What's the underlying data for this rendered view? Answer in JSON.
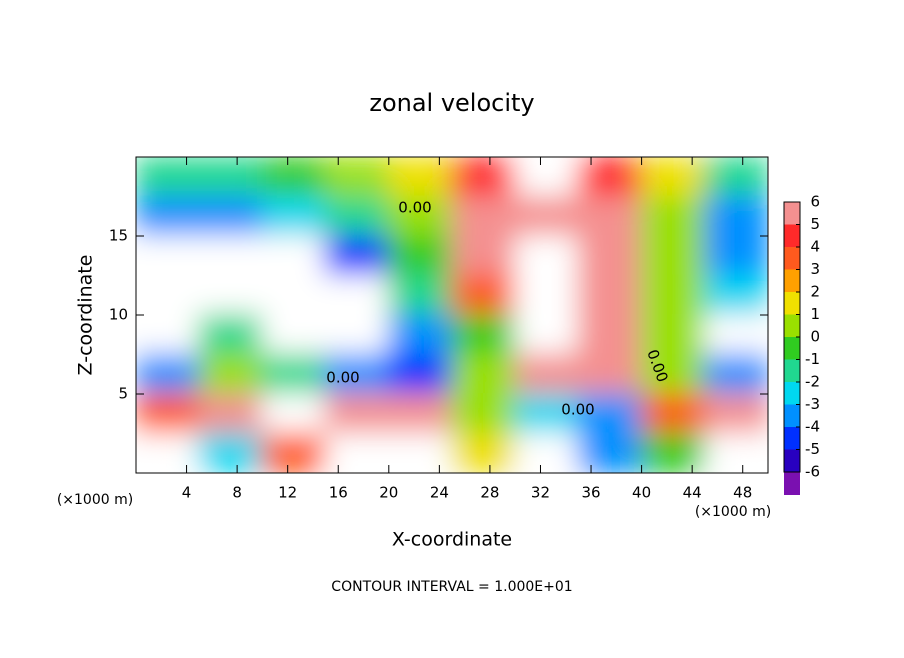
{
  "chart_data": {
    "type": "contour",
    "title": "zonal velocity",
    "xlabel": "X-coordinate",
    "ylabel": "Z-coordinate",
    "x_unit": "(×1000 m)",
    "y_unit": "(×1000 m)",
    "footnote": "CONTOUR INTERVAL = 1.000E+01",
    "xlim": [
      0,
      50
    ],
    "ylim": [
      0,
      20
    ],
    "xticks": [
      4,
      8,
      12,
      16,
      20,
      24,
      28,
      32,
      36,
      40,
      44,
      48
    ],
    "yticks": [
      5,
      10,
      15
    ],
    "z": [
      [
        -2,
        -2,
        -1,
        0,
        1,
        4,
        8,
        4,
        1,
        -2
      ],
      [
        -4,
        -4,
        -3,
        -2,
        0,
        5,
        5,
        5,
        0,
        -4
      ],
      [
        -8,
        -8,
        -8,
        -5,
        -1,
        5,
        8,
        5,
        0,
        -4
      ],
      [
        -8,
        -8,
        -8,
        -8,
        -2,
        3,
        8,
        6,
        0,
        -3
      ],
      [
        -8,
        -2,
        -8,
        -8,
        -4,
        -1,
        8,
        6,
        0,
        -8
      ],
      [
        -4,
        0,
        -2,
        -4,
        -5,
        0,
        5,
        5,
        0,
        -4
      ],
      [
        3,
        5,
        8,
        5,
        6,
        0,
        -3,
        -4,
        3,
        5
      ],
      [
        8,
        -3,
        3,
        8,
        8,
        1,
        8,
        -4,
        -1,
        8
      ]
    ],
    "contour_labels": [
      {
        "value": 0,
        "label": "0.00"
      },
      {
        "value": 0,
        "label": "0.00"
      },
      {
        "value": 0,
        "label": "0.00"
      },
      {
        "value": 0,
        "label": "0.00"
      }
    ],
    "colorbar": {
      "ticks": [
        6,
        5,
        4,
        3,
        2,
        1,
        0,
        -1,
        -2,
        -3,
        -4,
        -5,
        -6
      ],
      "colors": [
        "#f49090",
        "#ff2a2a",
        "#ff5a1e",
        "#ffa000",
        "#f0e000",
        "#9ae000",
        "#30cc20",
        "#20d890",
        "#00d8f0",
        "#0090ff",
        "#0030ff",
        "#2800c0",
        "#7a10b0"
      ]
    }
  }
}
